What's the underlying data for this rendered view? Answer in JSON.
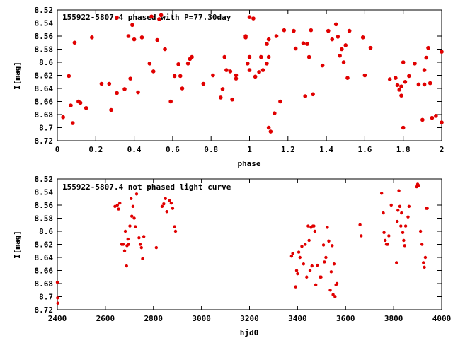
{
  "chart_data": [
    {
      "type": "scatter",
      "title": "155922-5807.4 phased with P=77.30day",
      "xlabel": "phase",
      "ylabel": "I[mag]",
      "xlim": [
        0,
        2
      ],
      "ylim": [
        8.72,
        8.52
      ],
      "y_inverted": true,
      "x_ticks": [
        0,
        0.2,
        0.4,
        0.6,
        0.8,
        1,
        1.2,
        1.4,
        1.6,
        1.8,
        2
      ],
      "y_ticks": [
        8.52,
        8.54,
        8.56,
        8.58,
        8.6,
        8.62,
        8.64,
        8.66,
        8.68,
        8.7,
        8.72
      ],
      "x_tick_labels": [
        "0",
        "0.2",
        "0.4",
        "0.6",
        "0.8",
        "1",
        "1.2",
        "1.4",
        "1.6",
        "1.8",
        "2"
      ],
      "y_tick_labels": [
        "8.52",
        "8.54",
        "8.56",
        "8.58",
        "8.6",
        "8.62",
        "8.64",
        "8.66",
        "8.68",
        "8.7",
        "8.72"
      ],
      "grid": false,
      "marker_color": "#e00000",
      "points": [
        [
          0.03,
          8.684
        ],
        [
          0.06,
          8.621
        ],
        [
          0.07,
          8.666
        ],
        [
          0.08,
          8.693
        ],
        [
          0.09,
          8.57
        ],
        [
          0.11,
          8.66
        ],
        [
          0.12,
          8.662
        ],
        [
          0.15,
          8.67
        ],
        [
          0.18,
          8.562
        ],
        [
          0.23,
          8.633
        ],
        [
          0.27,
          8.633
        ],
        [
          0.28,
          8.673
        ],
        [
          0.31,
          8.532
        ],
        [
          0.31,
          8.647
        ],
        [
          0.35,
          8.641
        ],
        [
          0.37,
          8.56
        ],
        [
          0.38,
          8.625
        ],
        [
          0.39,
          8.543
        ],
        [
          0.4,
          8.565
        ],
        [
          0.42,
          8.646
        ],
        [
          0.44,
          8.562
        ],
        [
          0.48,
          8.602
        ],
        [
          0.49,
          8.53
        ],
        [
          0.5,
          8.614
        ],
        [
          0.52,
          8.566
        ],
        [
          0.53,
          8.534
        ],
        [
          0.54,
          8.528
        ],
        [
          0.56,
          8.58
        ],
        [
          0.59,
          8.66
        ],
        [
          0.61,
          8.621
        ],
        [
          0.63,
          8.603
        ],
        [
          0.64,
          8.621
        ],
        [
          0.65,
          8.64
        ],
        [
          0.68,
          8.602
        ],
        [
          0.69,
          8.595
        ],
        [
          0.7,
          8.592
        ],
        [
          0.76,
          8.633
        ],
        [
          0.81,
          8.62
        ],
        [
          0.85,
          8.654
        ],
        [
          0.86,
          8.641
        ],
        [
          0.87,
          8.592
        ],
        [
          0.88,
          8.612
        ],
        [
          0.9,
          8.614
        ],
        [
          0.91,
          8.657
        ],
        [
          0.93,
          8.62
        ],
        [
          0.93,
          8.625
        ],
        [
          0.98,
          8.56
        ],
        [
          0.98,
          8.562
        ],
        [
          0.99,
          8.602
        ],
        [
          1.0,
          8.592
        ],
        [
          1.0,
          8.612
        ],
        [
          1.0,
          8.531
        ],
        [
          1.02,
          8.533
        ],
        [
          1.03,
          8.622
        ],
        [
          1.05,
          8.615
        ],
        [
          1.06,
          8.592
        ],
        [
          1.07,
          8.612
        ],
        [
          1.09,
          8.602
        ],
        [
          1.09,
          8.572
        ],
        [
          1.1,
          8.565
        ],
        [
          1.1,
          8.7
        ],
        [
          1.1,
          8.592
        ],
        [
          1.11,
          8.706
        ],
        [
          1.13,
          8.678
        ],
        [
          1.14,
          8.56
        ],
        [
          1.16,
          8.66
        ],
        [
          1.18,
          8.551
        ],
        [
          1.23,
          8.552
        ],
        [
          1.24,
          8.579
        ],
        [
          1.28,
          8.571
        ],
        [
          1.29,
          8.652
        ],
        [
          1.3,
          8.572
        ],
        [
          1.31,
          8.592
        ],
        [
          1.32,
          8.551
        ],
        [
          1.33,
          8.649
        ],
        [
          1.38,
          8.605
        ],
        [
          1.41,
          8.552
        ],
        [
          1.43,
          8.565
        ],
        [
          1.45,
          8.542
        ],
        [
          1.46,
          8.561
        ],
        [
          1.47,
          8.59
        ],
        [
          1.48,
          8.58
        ],
        [
          1.49,
          8.6
        ],
        [
          1.5,
          8.574
        ],
        [
          1.51,
          8.624
        ],
        [
          1.52,
          8.552
        ],
        [
          1.59,
          8.562
        ],
        [
          1.6,
          8.62
        ],
        [
          1.63,
          8.578
        ],
        [
          1.73,
          8.626
        ],
        [
          1.76,
          8.624
        ],
        [
          1.77,
          8.635
        ],
        [
          1.78,
          8.642
        ],
        [
          1.79,
          8.651
        ],
        [
          1.79,
          8.637
        ],
        [
          1.8,
          8.7
        ],
        [
          1.8,
          8.6
        ],
        [
          1.81,
          8.63
        ],
        [
          1.83,
          8.621
        ],
        [
          1.86,
          8.602
        ],
        [
          1.88,
          8.634
        ],
        [
          1.9,
          8.688
        ],
        [
          1.91,
          8.634
        ],
        [
          1.91,
          8.612
        ],
        [
          1.92,
          8.593
        ],
        [
          1.93,
          8.578
        ],
        [
          1.94,
          8.632
        ],
        [
          1.95,
          8.685
        ],
        [
          1.97,
          8.682
        ],
        [
          2.0,
          8.692
        ],
        [
          2.0,
          8.584
        ]
      ]
    },
    {
      "type": "scatter",
      "title": "155922-5807.4 not phased light curve",
      "xlabel": "hjd0",
      "ylabel": "I[mag]",
      "xlim": [
        2400,
        4000
      ],
      "ylim": [
        8.72,
        8.52
      ],
      "y_inverted": true,
      "x_ticks": [
        2400,
        2600,
        2800,
        3000,
        3200,
        3400,
        3600,
        3800,
        4000
      ],
      "y_ticks": [
        8.52,
        8.54,
        8.56,
        8.58,
        8.6,
        8.62,
        8.64,
        8.66,
        8.68,
        8.7,
        8.72
      ],
      "x_tick_labels": [
        "2400",
        "2600",
        "2800",
        "3000",
        "3200",
        "3400",
        "3600",
        "3800",
        "4000"
      ],
      "y_tick_labels": [
        "8.52",
        "8.54",
        "8.56",
        "8.58",
        "8.6",
        "8.62",
        "8.64",
        "8.66",
        "8.68",
        "8.7",
        "8.72"
      ],
      "grid": false,
      "marker_color": "#e00000",
      "points": [
        [
          2400,
          8.678
        ],
        [
          2401,
          8.702
        ],
        [
          2402,
          8.71
        ],
        [
          2640,
          8.562
        ],
        [
          2650,
          8.56
        ],
        [
          2655,
          8.566
        ],
        [
          2660,
          8.557
        ],
        [
          2668,
          8.62
        ],
        [
          2674,
          8.62
        ],
        [
          2680,
          8.63
        ],
        [
          2683,
          8.6
        ],
        [
          2688,
          8.653
        ],
        [
          2690,
          8.622
        ],
        [
          2694,
          8.612
        ],
        [
          2697,
          8.62
        ],
        [
          2702,
          8.592
        ],
        [
          2707,
          8.55
        ],
        [
          2710,
          8.577
        ],
        [
          2715,
          8.562
        ],
        [
          2720,
          8.58
        ],
        [
          2725,
          8.593
        ],
        [
          2730,
          8.543
        ],
        [
          2740,
          8.61
        ],
        [
          2745,
          8.62
        ],
        [
          2750,
          8.625
        ],
        [
          2755,
          8.642
        ],
        [
          2760,
          8.608
        ],
        [
          2812,
          8.625
        ],
        [
          2836,
          8.562
        ],
        [
          2843,
          8.558
        ],
        [
          2850,
          8.55
        ],
        [
          2856,
          8.57
        ],
        [
          2868,
          8.553
        ],
        [
          2874,
          8.557
        ],
        [
          2880,
          8.565
        ],
        [
          2888,
          8.593
        ],
        [
          2892,
          8.6
        ],
        [
          3375,
          8.638
        ],
        [
          3380,
          8.634
        ],
        [
          3392,
          8.685
        ],
        [
          3396,
          8.66
        ],
        [
          3400,
          8.665
        ],
        [
          3405,
          8.632
        ],
        [
          3410,
          8.64
        ],
        [
          3418,
          8.623
        ],
        [
          3425,
          8.65
        ],
        [
          3432,
          8.62
        ],
        [
          3438,
          8.67
        ],
        [
          3444,
          8.592
        ],
        [
          3448,
          8.614
        ],
        [
          3452,
          8.66
        ],
        [
          3456,
          8.594
        ],
        [
          3460,
          8.653
        ],
        [
          3464,
          8.592
        ],
        [
          3468,
          8.592
        ],
        [
          3472,
          8.6
        ],
        [
          3476,
          8.682
        ],
        [
          3482,
          8.652
        ],
        [
          3494,
          8.67
        ],
        [
          3498,
          8.67
        ],
        [
          3508,
          8.621
        ],
        [
          3512,
          8.647
        ],
        [
          3518,
          8.64
        ],
        [
          3524,
          8.594
        ],
        [
          3530,
          8.615
        ],
        [
          3536,
          8.69
        ],
        [
          3540,
          8.662
        ],
        [
          3544,
          8.622
        ],
        [
          3548,
          8.697
        ],
        [
          3552,
          8.65
        ],
        [
          3556,
          8.7
        ],
        [
          3560,
          8.682
        ],
        [
          3564,
          8.68
        ],
        [
          3660,
          8.59
        ],
        [
          3665,
          8.607
        ],
        [
          3750,
          8.542
        ],
        [
          3757,
          8.572
        ],
        [
          3760,
          8.602
        ],
        [
          3765,
          8.614
        ],
        [
          3770,
          8.62
        ],
        [
          3775,
          8.62
        ],
        [
          3780,
          8.607
        ],
        [
          3790,
          8.56
        ],
        [
          3812,
          8.648
        ],
        [
          3815,
          8.585
        ],
        [
          3818,
          8.568
        ],
        [
          3822,
          8.538
        ],
        [
          3826,
          8.562
        ],
        [
          3830,
          8.592
        ],
        [
          3833,
          8.572
        ],
        [
          3838,
          8.602
        ],
        [
          3842,
          8.614
        ],
        [
          3846,
          8.622
        ],
        [
          3850,
          8.592
        ],
        [
          3860,
          8.578
        ],
        [
          3864,
          8.562
        ],
        [
          3896,
          8.532
        ],
        [
          3900,
          8.528
        ],
        [
          3904,
          8.53
        ],
        [
          3912,
          8.6
        ],
        [
          3918,
          8.62
        ],
        [
          3924,
          8.648
        ],
        [
          3928,
          8.655
        ],
        [
          3932,
          8.64
        ],
        [
          3936,
          8.565
        ],
        [
          3940,
          8.565
        ]
      ]
    }
  ]
}
